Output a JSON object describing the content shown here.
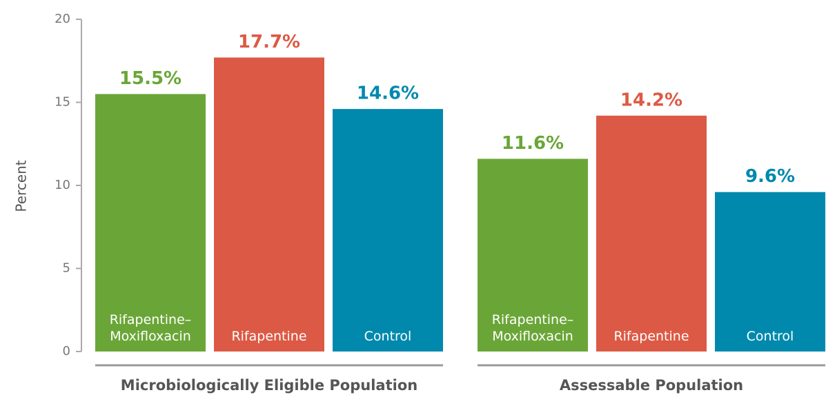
{
  "chart_data": {
    "type": "bar",
    "ylabel": "Percent",
    "categories": [
      "Microbiologically Eligible Population",
      "Assessable Population"
    ],
    "series": [
      {
        "name": "Rifapentine–Moxifloxacin",
        "color": "#6aa637",
        "values": [
          15.5,
          11.6
        ],
        "value_labels": [
          "15.5%",
          "11.6%"
        ]
      },
      {
        "name": "Rifapentine",
        "color": "#dc5a45",
        "values": [
          17.7,
          14.2
        ],
        "value_labels": [
          "17.7%",
          "14.2%"
        ]
      },
      {
        "name": "Control",
        "color": "#0089ad",
        "values": [
          14.6,
          9.6
        ],
        "value_labels": [
          "14.6%",
          "9.6%"
        ]
      }
    ],
    "ylim": [
      0,
      20
    ],
    "yticks": [
      0,
      5,
      10,
      15,
      20
    ]
  }
}
